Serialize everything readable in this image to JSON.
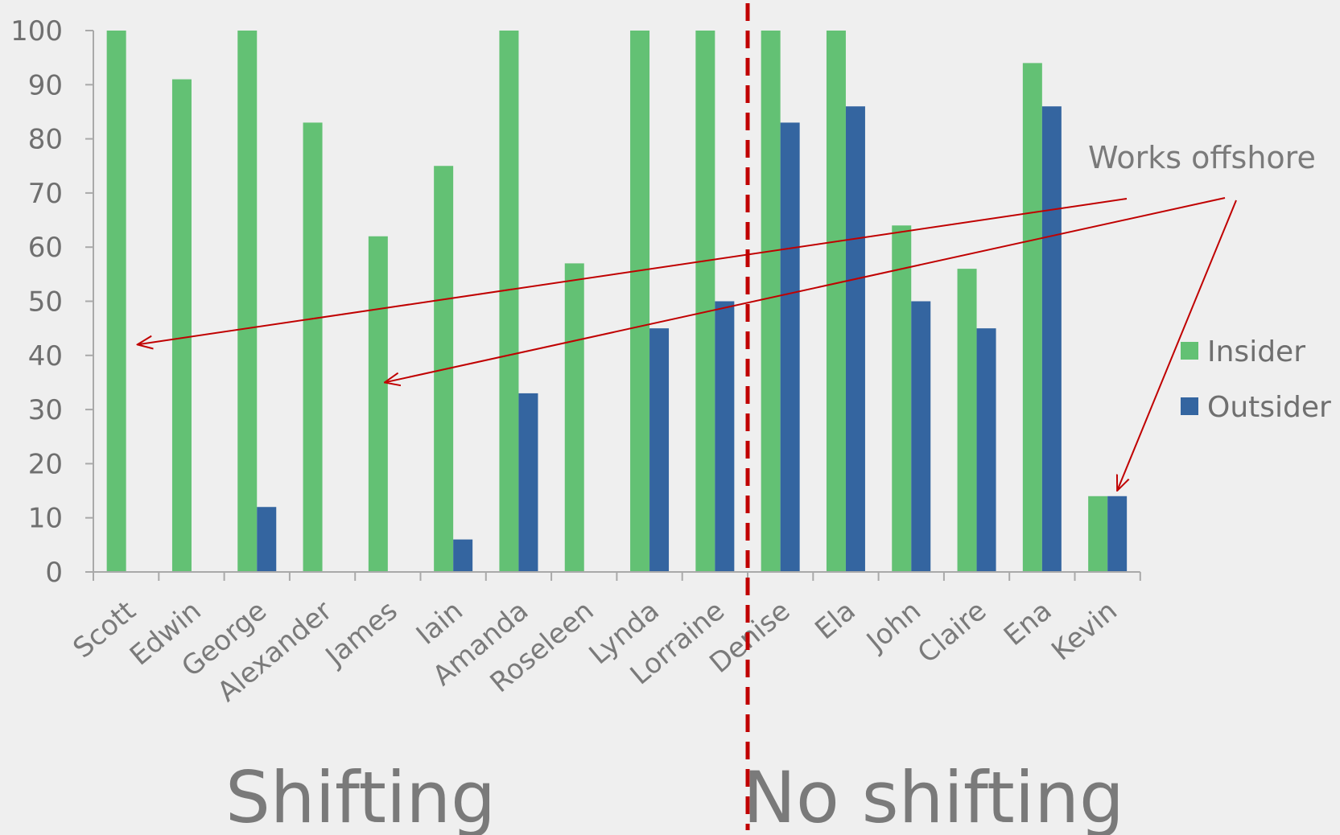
{
  "chart_data": {
    "type": "bar",
    "categories": [
      "Scott",
      "Edwin",
      "George",
      "Alexander",
      "James",
      "Iain",
      "Amanda",
      "Roseleen",
      "Lynda",
      "Lorraine",
      "Denise",
      "Ela",
      "John",
      "Claire",
      "Ena",
      "Kevin"
    ],
    "series": [
      {
        "name": "Insider",
        "color": "#63c174",
        "values": [
          100,
          91,
          100,
          83,
          62,
          75,
          100,
          57,
          100,
          100,
          100,
          100,
          64,
          56,
          94,
          14
        ]
      },
      {
        "name": "Outsider",
        "color": "#3465a0",
        "values": [
          0,
          0,
          12,
          0,
          0,
          6,
          33,
          0,
          45,
          50,
          83,
          86,
          50,
          45,
          86,
          14
        ]
      }
    ],
    "ylim": [
      0,
      100
    ],
    "yticks": [
      "0",
      "10",
      "20",
      "30",
      "40",
      "50",
      "60",
      "70",
      "80",
      "90",
      "100"
    ],
    "legend_position": "right",
    "grid": false,
    "divider_after_category": "Lorraine",
    "annotation": {
      "text": "Works offshore",
      "points_to": [
        {
          "category": "Scott",
          "value": 42
        },
        {
          "category": "James",
          "value": 35
        },
        {
          "category": "Kevin",
          "value": 15
        }
      ]
    },
    "group_labels": [
      "Shifting",
      "No shifting"
    ]
  }
}
